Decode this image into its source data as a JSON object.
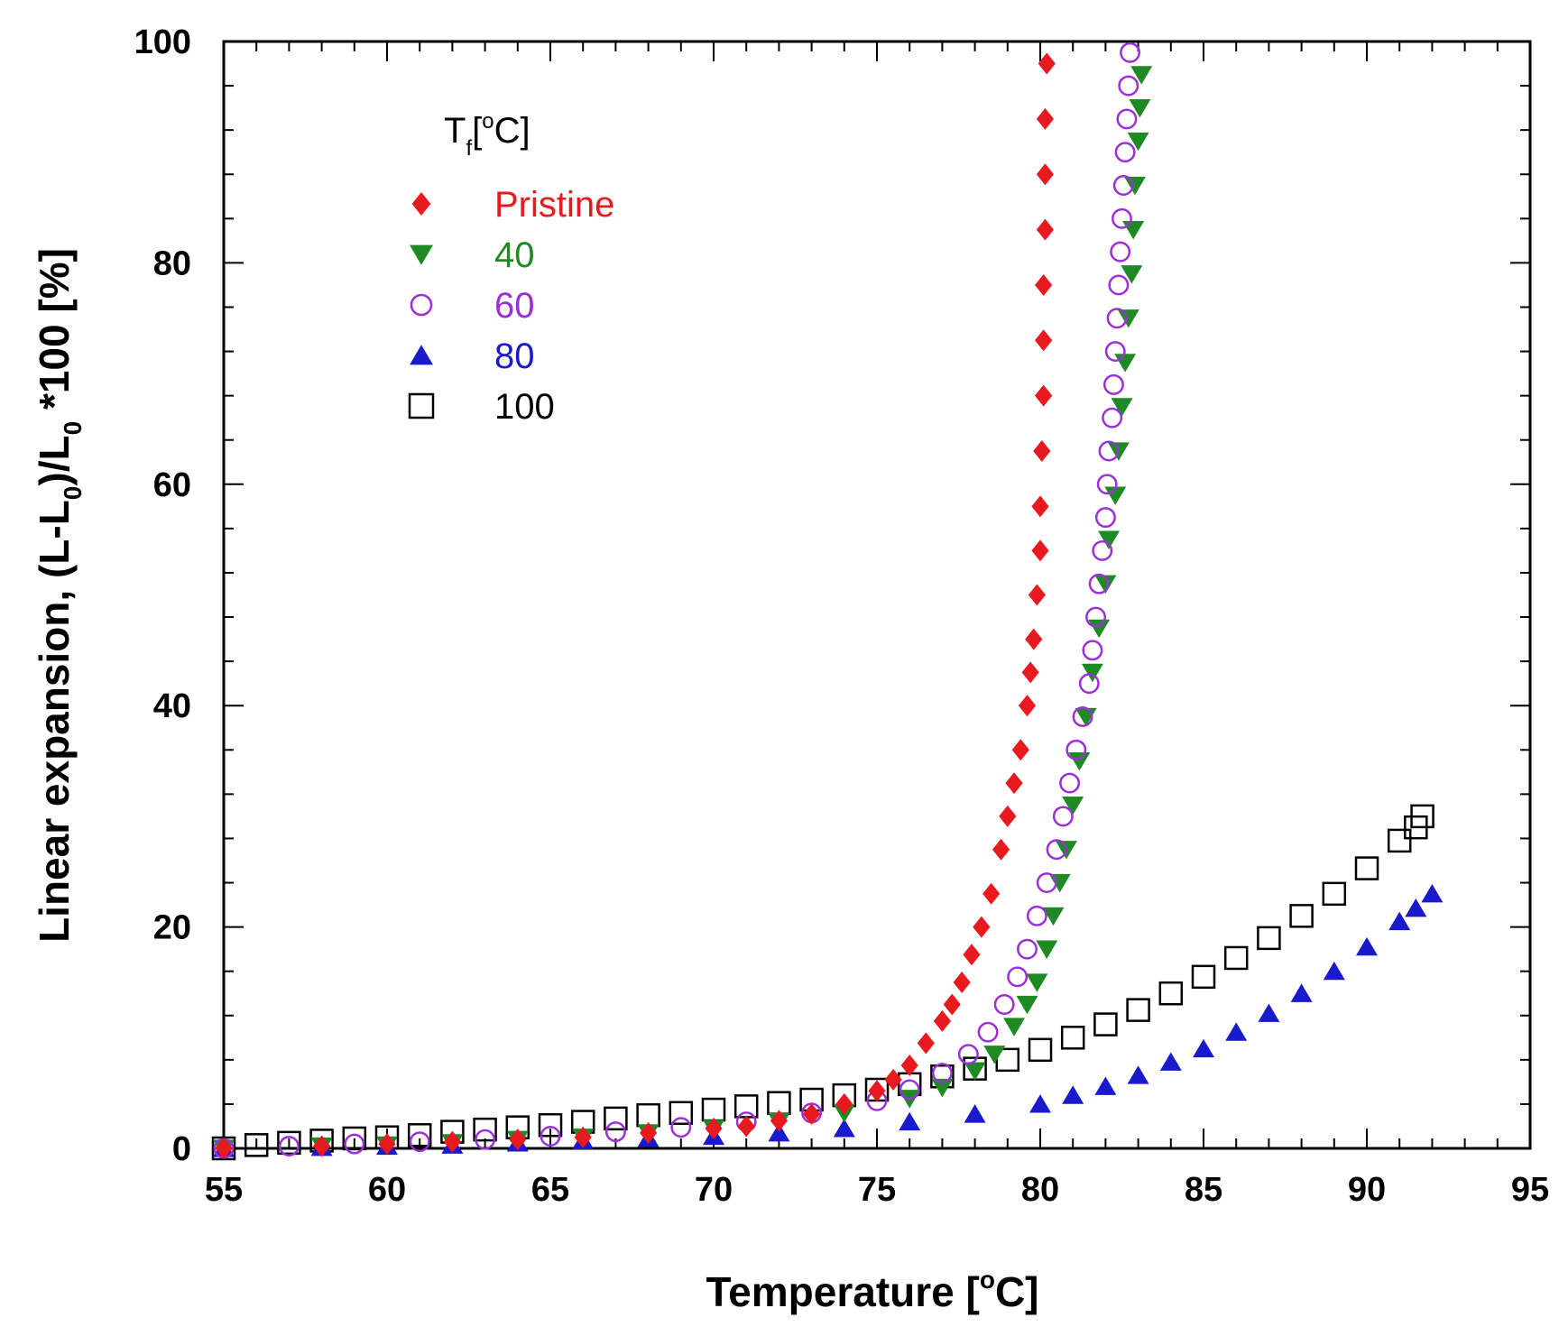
{
  "chart_data": {
    "type": "scatter",
    "title": "",
    "xlabel": "Temperature [°C]",
    "xlabel_parts": [
      "Temperature [",
      "o",
      "C]"
    ],
    "ylabel": "Linear expansion, (L-L0)/L0 *100 [%]",
    "ylabel_parts": [
      "Linear expansion, (L-L",
      "0",
      ")/L",
      "0",
      " *100 [%]"
    ],
    "xlim": [
      55,
      95
    ],
    "ylim": [
      0,
      100
    ],
    "x_ticks": [
      55,
      60,
      65,
      70,
      75,
      80,
      85,
      90,
      95
    ],
    "y_ticks": [
      0,
      20,
      40,
      60,
      80,
      100
    ],
    "legend": {
      "title": "Tf[°C]",
      "title_parts": [
        "T",
        "f",
        "[",
        "o",
        "C]"
      ],
      "position": "top-left",
      "entries": [
        "Pristine",
        "40",
        "60",
        "80",
        "100"
      ]
    },
    "series": [
      {
        "name": "Pristine",
        "marker": "diamond-filled",
        "color": "#e8191f",
        "points": [
          [
            55,
            0
          ],
          [
            58,
            0.2
          ],
          [
            60,
            0.4
          ],
          [
            62,
            0.6
          ],
          [
            64,
            0.8
          ],
          [
            66,
            1.0
          ],
          [
            68,
            1.4
          ],
          [
            70,
            1.8
          ],
          [
            71,
            2.0
          ],
          [
            72,
            2.5
          ],
          [
            73,
            3.1
          ],
          [
            74,
            4.0
          ],
          [
            75,
            5.2
          ],
          [
            75.5,
            6.2
          ],
          [
            76,
            7.5
          ],
          [
            76.5,
            9.5
          ],
          [
            77,
            11.5
          ],
          [
            77.3,
            13
          ],
          [
            77.6,
            15
          ],
          [
            77.9,
            17.5
          ],
          [
            78.2,
            20
          ],
          [
            78.5,
            23
          ],
          [
            78.8,
            27
          ],
          [
            79.0,
            30
          ],
          [
            79.2,
            33
          ],
          [
            79.4,
            36
          ],
          [
            79.6,
            40
          ],
          [
            79.7,
            43
          ],
          [
            79.8,
            46
          ],
          [
            79.9,
            50
          ],
          [
            80.0,
            54
          ],
          [
            80.0,
            58
          ],
          [
            80.05,
            63
          ],
          [
            80.1,
            68
          ],
          [
            80.1,
            73
          ],
          [
            80.1,
            78
          ],
          [
            80.15,
            83
          ],
          [
            80.15,
            88
          ],
          [
            80.15,
            93
          ],
          [
            80.2,
            98
          ]
        ]
      },
      {
        "name": "40",
        "marker": "triangle-down-filled",
        "color": "#1f8a23",
        "points": [
          [
            55,
            0
          ],
          [
            58,
            0.2
          ],
          [
            60,
            0.3
          ],
          [
            62,
            0.5
          ],
          [
            64,
            0.8
          ],
          [
            66,
            1.0
          ],
          [
            68,
            1.4
          ],
          [
            70,
            1.8
          ],
          [
            72,
            2.4
          ],
          [
            74,
            3.2
          ],
          [
            76,
            4.5
          ],
          [
            77,
            5.5
          ],
          [
            78,
            7.0
          ],
          [
            78.6,
            8.5
          ],
          [
            79.2,
            11
          ],
          [
            79.6,
            13
          ],
          [
            79.9,
            15
          ],
          [
            80.2,
            18
          ],
          [
            80.4,
            21
          ],
          [
            80.6,
            24
          ],
          [
            80.8,
            27
          ],
          [
            81.0,
            31
          ],
          [
            81.2,
            35
          ],
          [
            81.4,
            39
          ],
          [
            81.6,
            43
          ],
          [
            81.8,
            47
          ],
          [
            82.0,
            51
          ],
          [
            82.1,
            55
          ],
          [
            82.3,
            59
          ],
          [
            82.4,
            63
          ],
          [
            82.5,
            67
          ],
          [
            82.6,
            71
          ],
          [
            82.7,
            75
          ],
          [
            82.8,
            79
          ],
          [
            82.85,
            83
          ],
          [
            82.9,
            87
          ],
          [
            83.0,
            91
          ],
          [
            83.05,
            94
          ],
          [
            83.1,
            97
          ]
        ]
      },
      {
        "name": "60",
        "marker": "circle-open",
        "color": "#9b30d9",
        "points": [
          [
            55,
            0
          ],
          [
            57,
            0.2
          ],
          [
            59,
            0.4
          ],
          [
            61,
            0.6
          ],
          [
            63,
            0.8
          ],
          [
            65,
            1.1
          ],
          [
            67,
            1.5
          ],
          [
            69,
            1.9
          ],
          [
            71,
            2.4
          ],
          [
            73,
            3.2
          ],
          [
            75,
            4.3
          ],
          [
            76,
            5.3
          ],
          [
            77,
            6.8
          ],
          [
            77.8,
            8.5
          ],
          [
            78.4,
            10.5
          ],
          [
            78.9,
            13
          ],
          [
            79.3,
            15.5
          ],
          [
            79.6,
            18
          ],
          [
            79.9,
            21
          ],
          [
            80.2,
            24
          ],
          [
            80.5,
            27
          ],
          [
            80.7,
            30
          ],
          [
            80.9,
            33
          ],
          [
            81.1,
            36
          ],
          [
            81.3,
            39
          ],
          [
            81.5,
            42
          ],
          [
            81.6,
            45
          ],
          [
            81.7,
            48
          ],
          [
            81.8,
            51
          ],
          [
            81.9,
            54
          ],
          [
            82.0,
            57
          ],
          [
            82.05,
            60
          ],
          [
            82.1,
            63
          ],
          [
            82.2,
            66
          ],
          [
            82.25,
            69
          ],
          [
            82.3,
            72
          ],
          [
            82.35,
            75
          ],
          [
            82.4,
            78
          ],
          [
            82.45,
            81
          ],
          [
            82.5,
            84
          ],
          [
            82.55,
            87
          ],
          [
            82.6,
            90
          ],
          [
            82.65,
            93
          ],
          [
            82.7,
            96
          ],
          [
            82.75,
            99
          ]
        ]
      },
      {
        "name": "80",
        "marker": "triangle-up-filled",
        "color": "#1a1acd",
        "points": [
          [
            55,
            0
          ],
          [
            58,
            0.1
          ],
          [
            60,
            0.2
          ],
          [
            62,
            0.3
          ],
          [
            64,
            0.5
          ],
          [
            66,
            0.7
          ],
          [
            68,
            0.9
          ],
          [
            70,
            1.1
          ],
          [
            72,
            1.4
          ],
          [
            74,
            1.8
          ],
          [
            76,
            2.4
          ],
          [
            78,
            3.1
          ],
          [
            80,
            4.0
          ],
          [
            81,
            4.8
          ],
          [
            82,
            5.6
          ],
          [
            83,
            6.6
          ],
          [
            84,
            7.8
          ],
          [
            85,
            9.0
          ],
          [
            86,
            10.5
          ],
          [
            87,
            12.2
          ],
          [
            88,
            14.0
          ],
          [
            89,
            16.0
          ],
          [
            90,
            18.2
          ],
          [
            91,
            20.5
          ],
          [
            91.5,
            21.7
          ],
          [
            92,
            23.0
          ]
        ]
      },
      {
        "name": "100",
        "marker": "square-open",
        "color": "#000000",
        "points": [
          [
            55,
            0
          ],
          [
            56,
            0.3
          ],
          [
            57,
            0.5
          ],
          [
            58,
            0.7
          ],
          [
            59,
            0.9
          ],
          [
            60,
            1.0
          ],
          [
            61,
            1.2
          ],
          [
            62,
            1.5
          ],
          [
            63,
            1.7
          ],
          [
            64,
            1.9
          ],
          [
            65,
            2.1
          ],
          [
            66,
            2.4
          ],
          [
            67,
            2.7
          ],
          [
            68,
            3.0
          ],
          [
            69,
            3.2
          ],
          [
            70,
            3.5
          ],
          [
            71,
            3.8
          ],
          [
            72,
            4.1
          ],
          [
            73,
            4.4
          ],
          [
            74,
            4.8
          ],
          [
            75,
            5.3
          ],
          [
            76,
            5.8
          ],
          [
            77,
            6.5
          ],
          [
            78,
            7.2
          ],
          [
            79,
            8.0
          ],
          [
            80,
            8.9
          ],
          [
            81,
            10.0
          ],
          [
            82,
            11.2
          ],
          [
            83,
            12.5
          ],
          [
            84,
            14.0
          ],
          [
            85,
            15.5
          ],
          [
            86,
            17.2
          ],
          [
            87,
            19.0
          ],
          [
            88,
            21.0
          ],
          [
            89,
            23.0
          ],
          [
            90,
            25.3
          ],
          [
            91,
            27.8
          ],
          [
            91.5,
            29.0
          ],
          [
            91.7,
            30.0
          ]
        ]
      }
    ]
  }
}
